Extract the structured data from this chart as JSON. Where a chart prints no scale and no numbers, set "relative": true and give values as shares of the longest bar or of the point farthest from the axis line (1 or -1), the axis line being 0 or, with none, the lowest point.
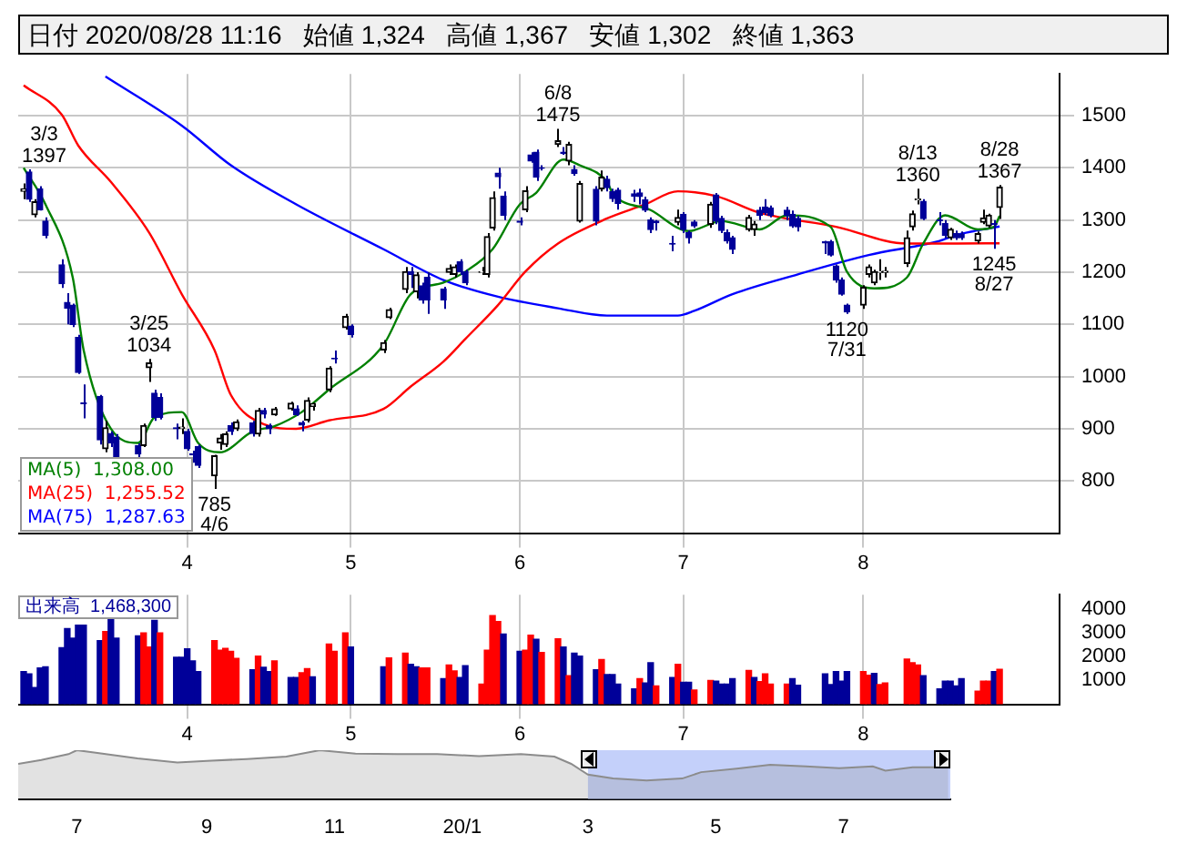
{
  "chart_data": [
    {
      "type": "candlestick",
      "title": "日付 2020/08/28 11:16   始値 1,324   高値 1,367   安値 1,302   終値 1,363",
      "x": [
        "2020-03-02",
        "2020-03-03",
        "2020-03-04",
        "2020-03-05",
        "2020-03-06",
        "2020-03-09",
        "2020-03-10",
        "2020-03-11",
        "2020-03-12",
        "2020-03-13",
        "2020-03-16",
        "2020-03-17",
        "2020-03-18",
        "2020-03-19",
        "2020-03-23",
        "2020-03-24",
        "2020-03-25",
        "2020-03-26",
        "2020-03-27",
        "2020-03-30",
        "2020-03-31",
        "2020-04-01",
        "2020-04-02",
        "2020-04-03",
        "2020-04-06",
        "2020-04-07",
        "2020-04-08",
        "2020-04-09",
        "2020-04-10",
        "2020-04-13",
        "2020-04-14",
        "2020-04-15",
        "2020-04-16",
        "2020-04-17",
        "2020-04-20",
        "2020-04-21",
        "2020-04-22",
        "2020-04-23",
        "2020-04-24",
        "2020-04-27",
        "2020-04-28",
        "2020-04-30",
        "2020-05-01",
        "2020-05-07",
        "2020-05-08",
        "2020-05-11",
        "2020-05-12",
        "2020-05-13",
        "2020-05-14",
        "2020-05-15",
        "2020-05-18",
        "2020-05-19",
        "2020-05-20",
        "2020-05-21",
        "2020-05-22",
        "2020-05-25",
        "2020-05-26",
        "2020-05-27",
        "2020-05-28",
        "2020-05-29",
        "2020-06-01",
        "2020-06-02",
        "2020-06-03",
        "2020-06-04",
        "2020-06-05",
        "2020-06-08",
        "2020-06-09",
        "2020-06-10",
        "2020-06-11",
        "2020-06-12",
        "2020-06-15",
        "2020-06-16",
        "2020-06-17",
        "2020-06-18",
        "2020-06-19",
        "2020-06-22",
        "2020-06-23",
        "2020-06-24",
        "2020-06-25",
        "2020-06-26",
        "2020-06-29",
        "2020-06-30",
        "2020-07-01",
        "2020-07-02",
        "2020-07-03",
        "2020-07-06",
        "2020-07-07",
        "2020-07-08",
        "2020-07-09",
        "2020-07-10",
        "2020-07-13",
        "2020-07-14",
        "2020-07-15",
        "2020-07-16",
        "2020-07-17",
        "2020-07-20",
        "2020-07-21",
        "2020-07-22",
        "2020-07-27",
        "2020-07-28",
        "2020-07-29",
        "2020-07-30",
        "2020-07-31",
        "2020-08-03",
        "2020-08-04",
        "2020-08-05",
        "2020-08-06",
        "2020-08-07",
        "2020-08-11",
        "2020-08-12",
        "2020-08-13",
        "2020-08-14",
        "2020-08-17",
        "2020-08-18",
        "2020-08-19",
        "2020-08-20",
        "2020-08-21",
        "2020-08-24",
        "2020-08-25",
        "2020-08-26",
        "2020-08-27",
        "2020-08-28"
      ],
      "ohlc": [
        [
          1355,
          1370,
          1340,
          1360
        ],
        [
          1392,
          1397,
          1335,
          1340
        ],
        [
          1310,
          1340,
          1305,
          1335
        ],
        [
          1360,
          1365,
          1318,
          1320
        ],
        [
          1298,
          1305,
          1265,
          1271
        ],
        [
          1214,
          1225,
          1170,
          1178
        ],
        [
          1142,
          1160,
          1100,
          1131
        ],
        [
          1137,
          1140,
          1095,
          1100
        ],
        [
          1075,
          1080,
          1005,
          1008
        ],
        [
          950,
          985,
          920,
          948
        ],
        [
          962,
          965,
          870,
          879
        ],
        [
          862,
          915,
          855,
          902
        ],
        [
          891,
          895,
          865,
          873
        ],
        [
          884,
          890,
          840,
          846
        ],
        [
          868,
          872,
          845,
          852
        ],
        [
          868,
          910,
          865,
          906
        ],
        [
          1017,
          1034,
          990,
          1026
        ],
        [
          968,
          975,
          915,
          922
        ],
        [
          960,
          968,
          918,
          922
        ],
        [
          902,
          910,
          880,
          900
        ],
        [
          901,
          920,
          890,
          903
        ],
        [
          895,
          900,
          858,
          862
        ],
        [
          852,
          858,
          835,
          850
        ],
        [
          866,
          870,
          825,
          830
        ],
        [
          810,
          850,
          785,
          848
        ],
        [
          873,
          890,
          860,
          882
        ],
        [
          870,
          895,
          865,
          890
        ],
        [
          906,
          912,
          888,
          895
        ],
        [
          900,
          918,
          896,
          913
        ],
        [
          911,
          915,
          885,
          891
        ],
        [
          890,
          940,
          885,
          935
        ],
        [
          935,
          940,
          920,
          928
        ],
        [
          906,
          910,
          890,
          900
        ],
        [
          927,
          942,
          925,
          938
        ],
        [
          938,
          952,
          935,
          949
        ],
        [
          938,
          945,
          925,
          927
        ],
        [
          912,
          915,
          895,
          907
        ],
        [
          917,
          960,
          912,
          954
        ],
        [
          943,
          950,
          935,
          948
        ],
        [
          975,
          1020,
          970,
          1016
        ],
        [
          1035,
          1050,
          1025,
          1034
        ],
        [
          1094,
          1120,
          1090,
          1115
        ],
        [
          1097,
          1100,
          1075,
          1081
        ],
        [
          1051,
          1070,
          1045,
          1065
        ],
        [
          1113,
          1132,
          1110,
          1128
        ],
        [
          1167,
          1210,
          1160,
          1201
        ],
        [
          1201,
          1210,
          1170,
          1196
        ],
        [
          1163,
          1200,
          1150,
          1195
        ],
        [
          1174,
          1180,
          1140,
          1147
        ],
        [
          1190,
          1200,
          1120,
          1147
        ],
        [
          1168,
          1172,
          1130,
          1147
        ],
        [
          1200,
          1215,
          1195,
          1207
        ],
        [
          1196,
          1215,
          1190,
          1210
        ],
        [
          1220,
          1225,
          1195,
          1201
        ],
        [
          1201,
          1205,
          1175,
          1180
        ],
        [
          1200,
          1210,
          1195,
          1201
        ],
        [
          1196,
          1275,
          1190,
          1268
        ],
        [
          1285,
          1355,
          1280,
          1343
        ],
        [
          1390,
          1400,
          1360,
          1383
        ],
        [
          1346,
          1355,
          1300,
          1309
        ],
        [
          1298,
          1305,
          1290,
          1296
        ],
        [
          1320,
          1365,
          1315,
          1356
        ],
        [
          1425,
          1430,
          1410,
          1413
        ],
        [
          1430,
          1435,
          1375,
          1382
        ],
        [
          1400,
          1405,
          1395,
          1399
        ],
        [
          1445,
          1475,
          1440,
          1452
        ],
        [
          1430,
          1440,
          1425,
          1428
        ],
        [
          1413,
          1450,
          1405,
          1445
        ],
        [
          1397,
          1405,
          1385,
          1389
        ],
        [
          1298,
          1375,
          1295,
          1370
        ],
        [
          1359,
          1365,
          1290,
          1298
        ],
        [
          1360,
          1395,
          1355,
          1382
        ],
        [
          1378,
          1385,
          1355,
          1362
        ],
        [
          1354,
          1360,
          1335,
          1341
        ],
        [
          1357,
          1362,
          1320,
          1332
        ],
        [
          1350,
          1358,
          1335,
          1346
        ],
        [
          1352,
          1360,
          1330,
          1345
        ],
        [
          1339,
          1345,
          1315,
          1319
        ],
        [
          1300,
          1305,
          1275,
          1282
        ],
        [
          1298,
          1300,
          1280,
          1295
        ],
        [
          1255,
          1270,
          1240,
          1254
        ],
        [
          1296,
          1320,
          1290,
          1305
        ],
        [
          1311,
          1315,
          1275,
          1282
        ],
        [
          1276,
          1280,
          1255,
          1266
        ],
        [
          1296,
          1300,
          1285,
          1289
        ],
        [
          1292,
          1335,
          1285,
          1330
        ],
        [
          1348,
          1352,
          1292,
          1298
        ],
        [
          1303,
          1308,
          1275,
          1280
        ],
        [
          1276,
          1282,
          1255,
          1260
        ],
        [
          1266,
          1270,
          1235,
          1244
        ],
        [
          1282,
          1310,
          1278,
          1305
        ],
        [
          1282,
          1298,
          1270,
          1292
        ],
        [
          1319,
          1325,
          1300,
          1309
        ],
        [
          1325,
          1340,
          1310,
          1314
        ],
        [
          1323,
          1328,
          1305,
          1309
        ],
        [
          1319,
          1325,
          1300,
          1309
        ],
        [
          1311,
          1318,
          1285,
          1289
        ],
        [
          1303,
          1308,
          1278,
          1287
        ],
        [
          1258,
          1260,
          1235,
          1256
        ],
        [
          1258,
          1262,
          1230,
          1233
        ],
        [
          1212,
          1215,
          1180,
          1185
        ],
        [
          1185,
          1190,
          1155,
          1158
        ],
        [
          1137,
          1140,
          1120,
          1124
        ],
        [
          1137,
          1175,
          1130,
          1171
        ],
        [
          1196,
          1215,
          1190,
          1210
        ],
        [
          1180,
          1205,
          1175,
          1201
        ],
        [
          1200,
          1225,
          1185,
          1201
        ],
        [
          1200,
          1210,
          1190,
          1202
        ],
        [
          1217,
          1280,
          1210,
          1266
        ],
        [
          1287,
          1318,
          1280,
          1312
        ],
        [
          1339,
          1360,
          1330,
          1340
        ],
        [
          1336,
          1340,
          1300,
          1303
        ],
        [
          1300,
          1315,
          1290,
          1299
        ],
        [
          1293,
          1300,
          1265,
          1271
        ],
        [
          1266,
          1285,
          1262,
          1282
        ],
        [
          1274,
          1280,
          1262,
          1266
        ],
        [
          1273,
          1278,
          1262,
          1266
        ],
        [
          1260,
          1278,
          1255,
          1274
        ],
        [
          1296,
          1320,
          1292,
          1304
        ],
        [
          1289,
          1312,
          1285,
          1309
        ],
        [
          1293,
          1300,
          1245,
          1292
        ],
        [
          1324,
          1367,
          1302,
          1363
        ]
      ],
      "series": [
        {
          "name": "MA(5)  1,308.00",
          "type": "line",
          "color": "#008000",
          "x": [
            "2020-03-02",
            "2020-03-06",
            "2020-03-11",
            "2020-03-13",
            "2020-03-18",
            "2020-03-23",
            "2020-03-26",
            "2020-03-31",
            "2020-04-03",
            "2020-04-07",
            "2020-04-13",
            "2020-04-17",
            "2020-04-22",
            "2020-04-27",
            "2020-05-07",
            "2020-05-12",
            "2020-05-18",
            "2020-05-22",
            "2020-05-27",
            "2020-06-01",
            "2020-06-04",
            "2020-06-09",
            "2020-06-12",
            "2020-06-17",
            "2020-06-18",
            "2020-06-25",
            "2020-07-02",
            "2020-07-08",
            "2020-07-15",
            "2020-07-20",
            "2020-07-28",
            "2020-07-31",
            "2020-08-05",
            "2020-08-11",
            "2020-08-14",
            "2020-08-18",
            "2020-08-24",
            "2020-08-27",
            "2020-08-28"
          ],
          "values": [
            1400,
            1330,
            1190,
            1051,
            900,
            873,
            922,
            932,
            873,
            855,
            895,
            905,
            932,
            975,
            1061,
            1158,
            1180,
            1201,
            1244,
            1330,
            1352,
            1416,
            1405,
            1373,
            1352,
            1319,
            1279,
            1298,
            1282,
            1309,
            1287,
            1201,
            1169,
            1190,
            1255,
            1309,
            1282,
            1287,
            1308
          ]
        },
        {
          "name": "MA(25)  1,255.52",
          "type": "line",
          "color": "#ff0000",
          "x": [
            "2020-03-02",
            "2020-03-09",
            "2020-03-12",
            "2020-03-18",
            "2020-03-25",
            "2020-03-31",
            "2020-04-06",
            "2020-04-09",
            "2020-04-15",
            "2020-04-21",
            "2020-04-27",
            "2020-05-07",
            "2020-05-12",
            "2020-05-18",
            "2020-05-22",
            "2020-05-28",
            "2020-06-02",
            "2020-06-08",
            "2020-06-17",
            "2020-06-24",
            "2020-06-30",
            "2020-07-07",
            "2020-07-15",
            "2020-07-29",
            "2020-08-11",
            "2020-08-20",
            "2020-08-28"
          ],
          "values": [
            1558,
            1502,
            1443,
            1373,
            1276,
            1158,
            1051,
            965,
            909,
            900,
            916,
            938,
            981,
            1029,
            1072,
            1137,
            1201,
            1255,
            1303,
            1330,
            1355,
            1346,
            1314,
            1287,
            1255,
            1255,
            1255.52
          ]
        },
        {
          "name": "MA(75)  1,287.63",
          "type": "line",
          "color": "#0000ff",
          "x": [
            "2020-03-17",
            "2020-03-31",
            "2020-04-09",
            "2020-04-21",
            "2020-05-07",
            "2020-05-18",
            "2020-05-28",
            "2020-06-08",
            "2020-06-17",
            "2020-06-30",
            "2020-07-03",
            "2020-07-10",
            "2020-07-22",
            "2020-08-04",
            "2020-08-17",
            "2020-08-20",
            "2020-08-28"
          ],
          "values": [
            1575,
            1481,
            1405,
            1330,
            1244,
            1185,
            1153,
            1131,
            1117,
            1117,
            1126,
            1158,
            1196,
            1233,
            1260,
            1271,
            1287.63
          ]
        }
      ],
      "ylim": [
        700,
        1580
      ],
      "yticks": [
        800,
        900,
        1000,
        1100,
        1200,
        1300,
        1400,
        1500
      ],
      "xlim": [
        "2020-03-01",
        "2020-09-08"
      ],
      "xticks": [
        {
          "value": "2020-04-01",
          "label": "4"
        },
        {
          "value": "2020-05-01",
          "label": "5"
        },
        {
          "value": "2020-06-01",
          "label": "6"
        },
        {
          "value": "2020-07-01",
          "label": "7"
        },
        {
          "value": "2020-08-03",
          "label": "8"
        }
      ],
      "grid": true,
      "legend": "bottom left",
      "annotations": [
        {
          "text": "3/3\n1397",
          "x": "2020-03-03",
          "y": 1397
        },
        {
          "text": "3/25\n1034",
          "x": "2020-03-25",
          "y": 1034
        },
        {
          "text": "785\n4/6",
          "x": "2020-04-06",
          "y": 785
        },
        {
          "text": "6/8\n1475",
          "x": "2020-06-08",
          "y": 1475
        },
        {
          "text": "1120\n7/31",
          "x": "2020-07-31",
          "y": 1120
        },
        {
          "text": "8/13\n1360",
          "x": "2020-08-13",
          "y": 1360
        },
        {
          "text": "1245\n8/27",
          "x": "2020-08-27",
          "y": 1245
        },
        {
          "text": "8/28\n1367",
          "x": "2020-08-28",
          "y": 1367
        }
      ]
    },
    {
      "type": "bar",
      "title": "出来高  1,468,300",
      "x": [
        "2020-03-02",
        "2020-03-03",
        "2020-03-04",
        "2020-03-05",
        "2020-03-06",
        "2020-03-09",
        "2020-03-10",
        "2020-03-11",
        "2020-03-12",
        "2020-03-13",
        "2020-03-16",
        "2020-03-17",
        "2020-03-18",
        "2020-03-19",
        "2020-03-23",
        "2020-03-24",
        "2020-03-25",
        "2020-03-26",
        "2020-03-27",
        "2020-03-30",
        "2020-03-31",
        "2020-04-01",
        "2020-04-02",
        "2020-04-03",
        "2020-04-06",
        "2020-04-07",
        "2020-04-08",
        "2020-04-09",
        "2020-04-10",
        "2020-04-13",
        "2020-04-14",
        "2020-04-15",
        "2020-04-16",
        "2020-04-17",
        "2020-04-20",
        "2020-04-21",
        "2020-04-22",
        "2020-04-23",
        "2020-04-24",
        "2020-04-27",
        "2020-04-28",
        "2020-04-30",
        "2020-05-01",
        "2020-05-07",
        "2020-05-08",
        "2020-05-11",
        "2020-05-12",
        "2020-05-13",
        "2020-05-14",
        "2020-05-15",
        "2020-05-18",
        "2020-05-19",
        "2020-05-20",
        "2020-05-21",
        "2020-05-22",
        "2020-05-25",
        "2020-05-26",
        "2020-05-27",
        "2020-05-28",
        "2020-05-29",
        "2020-06-01",
        "2020-06-02",
        "2020-06-03",
        "2020-06-04",
        "2020-06-05",
        "2020-06-08",
        "2020-06-09",
        "2020-06-10",
        "2020-06-11",
        "2020-06-12",
        "2020-06-15",
        "2020-06-16",
        "2020-06-17",
        "2020-06-18",
        "2020-06-19",
        "2020-06-22",
        "2020-06-23",
        "2020-06-24",
        "2020-06-25",
        "2020-06-26",
        "2020-06-29",
        "2020-06-30",
        "2020-07-01",
        "2020-07-02",
        "2020-07-03",
        "2020-07-06",
        "2020-07-07",
        "2020-07-08",
        "2020-07-09",
        "2020-07-10",
        "2020-07-13",
        "2020-07-14",
        "2020-07-15",
        "2020-07-16",
        "2020-07-17",
        "2020-07-20",
        "2020-07-21",
        "2020-07-22",
        "2020-07-27",
        "2020-07-28",
        "2020-07-29",
        "2020-07-30",
        "2020-07-31",
        "2020-08-03",
        "2020-08-04",
        "2020-08-05",
        "2020-08-06",
        "2020-08-07",
        "2020-08-11",
        "2020-08-12",
        "2020-08-13",
        "2020-08-14",
        "2020-08-17",
        "2020-08-18",
        "2020-08-19",
        "2020-08-20",
        "2020-08-21",
        "2020-08-24",
        "2020-08-25",
        "2020-08-26",
        "2020-08-27",
        "2020-08-28"
      ],
      "values": [
        1375,
        1275,
        700,
        1525,
        1575,
        2375,
        3175,
        2775,
        3325,
        3325,
        2675,
        3050,
        3700,
        2775,
        2875,
        3000,
        2400,
        3525,
        3000,
        1975,
        1975,
        2325,
        1825,
        1375,
        2675,
        2275,
        2350,
        2225,
        1925,
        1450,
        2025,
        1550,
        1375,
        1825,
        1125,
        1125,
        1325,
        1500,
        1150,
        2525,
        2225,
        3000,
        2400,
        1575,
        1950,
        2150,
        1675,
        1575,
        1525,
        1525,
        1075,
        1650,
        1400,
        1125,
        1625,
        850,
        2275,
        3725,
        3475,
        2950,
        2225,
        2275,
        2900,
        2725,
        2175,
        2750,
        2400,
        1200,
        2150,
        2025,
        1450,
        1875,
        1250,
        1250,
        850,
        650,
        1075,
        900,
        1750,
        775,
        1125,
        1675,
        925,
        925,
        600,
        1000,
        975,
        850,
        850,
        1075,
        1425,
        1125,
        950,
        1275,
        850,
        850,
        1075,
        800,
        1275,
        825,
        1375,
        975,
        1375,
        1375,
        1225,
        1300,
        825,
        900,
        1900,
        1750,
        1650,
        1200,
        650,
        975,
        975,
        775,
        1075,
        550,
        975,
        975,
        1375,
        1468
      ],
      "xlim": [
        "2020-03-01",
        "2020-09-08"
      ],
      "colors": [
        "#000099",
        "#000099",
        "#000099",
        "#000099",
        "#000099",
        "#000099",
        "#000099",
        "#000099",
        "#000099",
        "#000099",
        "#000099",
        "#ff0000",
        "#000099",
        "#000099",
        "#000099",
        "#ff0000",
        "#ff0000",
        "#000099",
        "#ff0000",
        "#000099",
        "#000099",
        "#000099",
        "#000099",
        "#000099",
        "#ff0000",
        "#ff0000",
        "#ff0000",
        "#ff0000",
        "#ff0000",
        "#000099",
        "#ff0000",
        "#000099",
        "#000099",
        "#ff0000",
        "#000099",
        "#000099",
        "#ff0000",
        "#ff0000",
        "#000099",
        "#ff0000",
        "#ff0000",
        "#ff0000",
        "#000099",
        "#000099",
        "#ff0000",
        "#ff0000",
        "#000099",
        "#000099",
        "#ff0000",
        "#ff0000",
        "#000099",
        "#ff0000",
        "#ff0000",
        "#000099",
        "#000099",
        "#ff0000",
        "#ff0000",
        "#ff0000",
        "#ff0000",
        "#000099",
        "#000099",
        "#ff0000",
        "#ff0000",
        "#000099",
        "#ff0000",
        "#ff0000",
        "#000099",
        "#ff0000",
        "#000099",
        "#000099",
        "#000099",
        "#ff0000",
        "#000099",
        "#000099",
        "#000099",
        "#000099",
        "#ff0000",
        "#000099",
        "#000099",
        "#ff0000",
        "#000099",
        "#ff0000",
        "#000099",
        "#000099",
        "#ff0000",
        "#ff0000",
        "#000099",
        "#000099",
        "#000099",
        "#000099",
        "#ff0000",
        "#000099",
        "#ff0000",
        "#ff0000",
        "#ff0000",
        "#ff0000",
        "#000099",
        "#000099",
        "#000099",
        "#000099",
        "#000099",
        "#000099",
        "#000099",
        "#ff0000",
        "#ff0000",
        "#000099",
        "#ff0000",
        "#ff0000",
        "#ff0000",
        "#ff0000",
        "#ff0000",
        "#000099",
        "#000099",
        "#000099",
        "#000099",
        "#000099",
        "#000099",
        "#ff0000",
        "#ff0000",
        "#ff0000",
        "#000099",
        "#ff0000"
      ],
      "ylim": [
        0,
        4600
      ],
      "yticks": [
        1000,
        2000,
        3000,
        4000
      ],
      "xticks": [
        {
          "value": "2020-04-01",
          "label": "4"
        },
        {
          "value": "2020-05-01",
          "label": "5"
        },
        {
          "value": "2020-06-01",
          "label": "6"
        },
        {
          "value": "2020-07-01",
          "label": "7"
        },
        {
          "value": "2020-08-03",
          "label": "8"
        }
      ],
      "grid": "x"
    },
    {
      "type": "area",
      "relative": true,
      "color": "#8c8c8c",
      "x": [
        "2019-06-03",
        "2019-06-14",
        "2019-06-27",
        "2019-07-01",
        "2019-07-10",
        "2019-07-30",
        "2019-08-18",
        "2019-09-01",
        "2019-09-20",
        "2019-10-09",
        "2019-10-25",
        "2019-11-11",
        "2019-12-01",
        "2019-12-20",
        "2020-01-09",
        "2020-01-29",
        "2020-02-14",
        "2020-02-22",
        "2020-03-01",
        "2020-03-13",
        "2020-03-29",
        "2020-04-15",
        "2020-04-24",
        "2020-05-11",
        "2020-05-27",
        "2020-06-13",
        "2020-06-29",
        "2020-07-15",
        "2020-07-21",
        "2020-08-03",
        "2020-08-20"
      ],
      "values": [
        0.72,
        0.8,
        0.92,
        1,
        0.95,
        0.83,
        0.75,
        0.78,
        0.82,
        0.87,
        1,
        0.93,
        0.92,
        0.92,
        0.88,
        0.92,
        0.87,
        0.72,
        0.5,
        0.42,
        0.38,
        0.42,
        0.55,
        0.62,
        0.7,
        0.67,
        0.63,
        0.67,
        0.58,
        0.65,
        0.65
      ],
      "xlim": [
        "2019-06-03",
        "2020-08-21"
      ],
      "xticks": [
        {
          "value": "2019-07-01",
          "label": "7"
        },
        {
          "value": "2019-09-01",
          "label": "9"
        },
        {
          "value": "2019-11-01",
          "label": "11"
        },
        {
          "value": "2020-01-01",
          "label": "20/1"
        },
        {
          "value": "2020-03-01",
          "label": "3"
        },
        {
          "value": "2020-05-01",
          "label": "5"
        },
        {
          "value": "2020-07-01",
          "label": "7"
        }
      ],
      "bands": [
        {
          "axis": "x",
          "from": "2020-03-01",
          "to": "2020-08-21",
          "color": "#c4d0fa"
        }
      ]
    }
  ]
}
